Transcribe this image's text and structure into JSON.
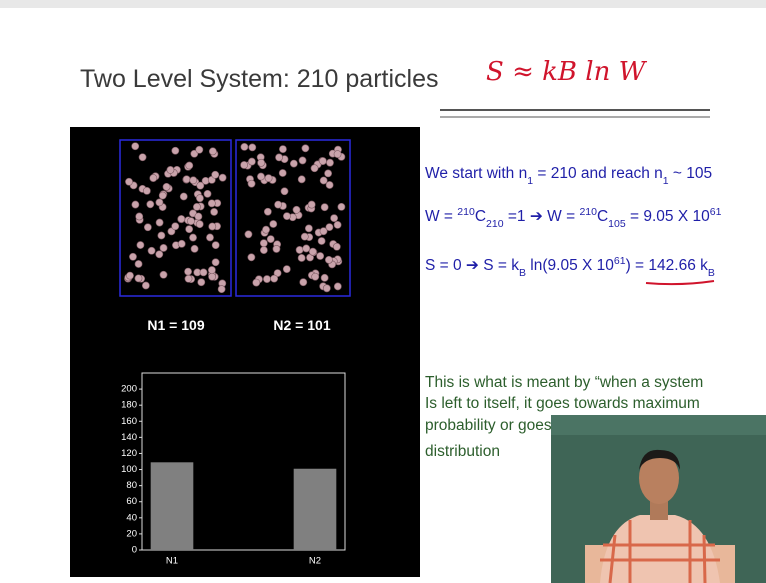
{
  "slide": {
    "title": "Two Level System: 210 particles",
    "annotation": "S ≈ kB ln W",
    "box_labels": [
      "N1 = 109",
      "N2 = 101"
    ],
    "equations": [
      [
        "We start with n",
        "1",
        " = 210 and reach n",
        "1",
        " ~ 105"
      ],
      [
        "W = ",
        "210",
        "C",
        "210",
        " =1 ➔ W = ",
        "210",
        "C",
        "105",
        " = 9.05 X 10",
        "61"
      ],
      [
        "S = 0 ➔ S = k",
        "B",
        " ln(9.05 X 10",
        "61",
        ") = ",
        "142.66 k",
        "B"
      ]
    ],
    "note": [
      "This is what is meant by “when a system",
      "Is left to itself, it goes towards maximum",
      "probability or goes",
      "distribution"
    ]
  },
  "chart_data": {
    "type": "bar",
    "categories": [
      "N1",
      "N2"
    ],
    "values": [
      109,
      101
    ],
    "color": "#808080",
    "ylim": [
      0,
      220
    ],
    "yticks": [
      0,
      20,
      40,
      60,
      80,
      100,
      120,
      140,
      160,
      180,
      200
    ]
  }
}
